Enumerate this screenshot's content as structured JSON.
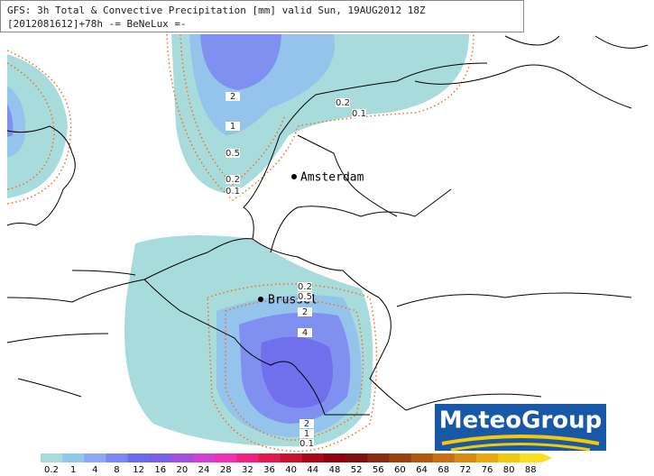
{
  "header": {
    "line1": "GFS: 3h Total & Convective Precipitation [mm] valid Sun, 19AUG2012 18Z",
    "line2": "[2012081612]+78h -= BeNeLux =-"
  },
  "cities": [
    {
      "label": "Amsterdam"
    },
    {
      "label": "Brussel"
    }
  ],
  "contour_labels": [
    "2",
    "1",
    "0.5",
    "0.2",
    "0.1",
    "0.2",
    "0.1",
    "0.2",
    "0.5",
    "2",
    "4",
    "2",
    "1",
    "0.1"
  ],
  "legend": {
    "labels": [
      "0.2",
      "1",
      "4",
      "8",
      "12",
      "16",
      "20",
      "24",
      "28",
      "32",
      "36",
      "40",
      "44",
      "48",
      "52",
      "56",
      "60",
      "64",
      "68",
      "72",
      "76",
      "80",
      "88"
    ],
    "colors": [
      "#a8dcdc",
      "#90c8ec",
      "#8aa8f4",
      "#7a88f4",
      "#6a6cf0",
      "#7a60e8",
      "#a050e0",
      "#d040d0",
      "#f030b0",
      "#f02080",
      "#e01850",
      "#c81030",
      "#a80818",
      "#900010",
      "#801010",
      "#8a2a10",
      "#9a4010",
      "#b05810",
      "#c87010",
      "#d88a10",
      "#e8a810",
      "#f0c810",
      "#f8e020"
    ]
  },
  "logo": "MeteoGroup"
}
